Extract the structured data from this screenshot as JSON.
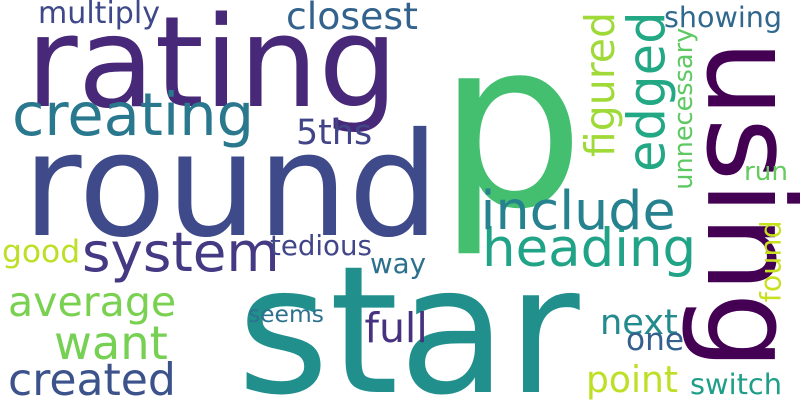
{
  "words": [
    {
      "text": "star",
      "color": "#21908d",
      "rotation": 0
    },
    {
      "text": "p",
      "color": "#44bf70",
      "rotation": 0
    },
    {
      "text": "round",
      "color": "#3e4a89",
      "rotation": 0
    },
    {
      "text": "rating",
      "color": "#482878",
      "rotation": 0
    },
    {
      "text": "using",
      "color": "#440154",
      "rotation": 90
    },
    {
      "text": "heading",
      "color": "#20a386",
      "rotation": 0
    },
    {
      "text": "system",
      "color": "#443983",
      "rotation": 0
    },
    {
      "text": "creating",
      "color": "#2a788e",
      "rotation": 0
    },
    {
      "text": "include",
      "color": "#26828e",
      "rotation": 0
    },
    {
      "text": "want",
      "color": "#75d054",
      "rotation": 0
    },
    {
      "text": "average",
      "color": "#7ad151",
      "rotation": 0
    },
    {
      "text": "created",
      "color": "#3b528b",
      "rotation": 0
    },
    {
      "text": "edged",
      "color": "#22a884",
      "rotation": -90
    },
    {
      "text": "closest",
      "color": "#33638d",
      "rotation": 0
    },
    {
      "text": "5ths",
      "color": "#414487",
      "rotation": 0
    },
    {
      "text": "figured",
      "color": "#a0da39",
      "rotation": -90
    },
    {
      "text": "full",
      "color": "#46327e",
      "rotation": 0
    },
    {
      "text": "way",
      "color": "#2d708e",
      "rotation": 0
    },
    {
      "text": "showing",
      "color": "#31688e",
      "rotation": 0
    },
    {
      "text": "next",
      "color": "#238a8d",
      "rotation": 0
    },
    {
      "text": "one",
      "color": "#355f8d",
      "rotation": 0
    },
    {
      "text": "point",
      "color": "#bddf26",
      "rotation": 0
    },
    {
      "text": "found",
      "color": "#c8e020",
      "rotation": -90
    },
    {
      "text": "good",
      "color": "#bddf26",
      "rotation": 0
    },
    {
      "text": "multiply",
      "color": "#3f4889",
      "rotation": 0
    },
    {
      "text": "tedious",
      "color": "#404688",
      "rotation": 0
    },
    {
      "text": "seems",
      "color": "#2c728e",
      "rotation": 0
    },
    {
      "text": "unnecessary",
      "color": "#5ec962",
      "rotation": -90
    },
    {
      "text": "run",
      "color": "#65cb5e",
      "rotation": 0
    },
    {
      "text": "switch",
      "color": "#1f9e89",
      "rotation": 0
    }
  ]
}
